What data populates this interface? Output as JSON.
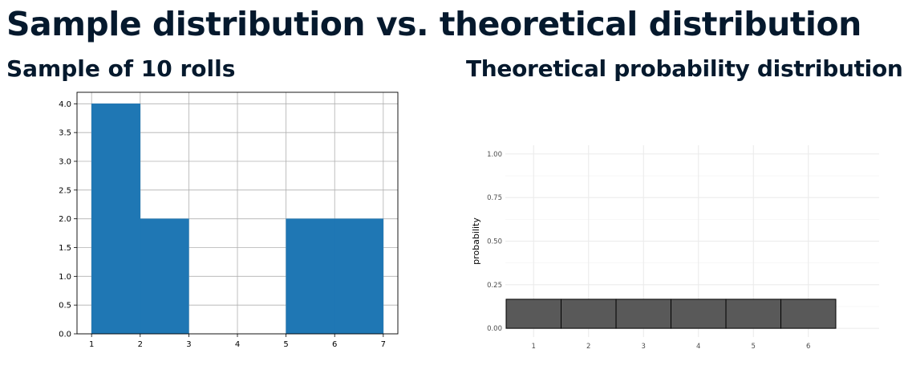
{
  "slide": {
    "title": "Sample distribution vs. theoretical distribution"
  },
  "left_panel": {
    "title": "Sample of 10 rolls"
  },
  "right_panel": {
    "title": "Theoretical probability distribution"
  },
  "colors": {
    "title_text": "#05192d",
    "histogram_bar": "#1f77b4",
    "theoretical_bar": "#595959"
  },
  "chart_data": [
    {
      "type": "bar",
      "subtype": "histogram",
      "bin_edges": [
        1,
        2,
        3,
        4,
        5,
        6,
        7
      ],
      "values": [
        4,
        2,
        0,
        0,
        2,
        2
      ],
      "xlim": [
        0.7,
        7.3
      ],
      "ylim": [
        0,
        4.2
      ],
      "x_ticks": [
        1,
        2,
        3,
        4,
        5,
        6,
        7
      ],
      "y_ticks": [
        "0.0",
        "0.5",
        "1.0",
        "1.5",
        "2.0",
        "2.5",
        "3.0",
        "3.5",
        "4.0"
      ],
      "xlabel": "",
      "ylabel": "",
      "grid": true
    },
    {
      "type": "bar",
      "categories": [
        "1",
        "2",
        "3",
        "4",
        "5",
        "6"
      ],
      "values": [
        0.1667,
        0.1667,
        0.1667,
        0.1667,
        0.1667,
        0.1667
      ],
      "ylim": [
        -0.05,
        1.05
      ],
      "y_ticks": [
        "0.00",
        "0.25",
        "0.50",
        "0.75",
        "1.00"
      ],
      "xlabel": "",
      "ylabel": "probability",
      "grid": true
    }
  ]
}
